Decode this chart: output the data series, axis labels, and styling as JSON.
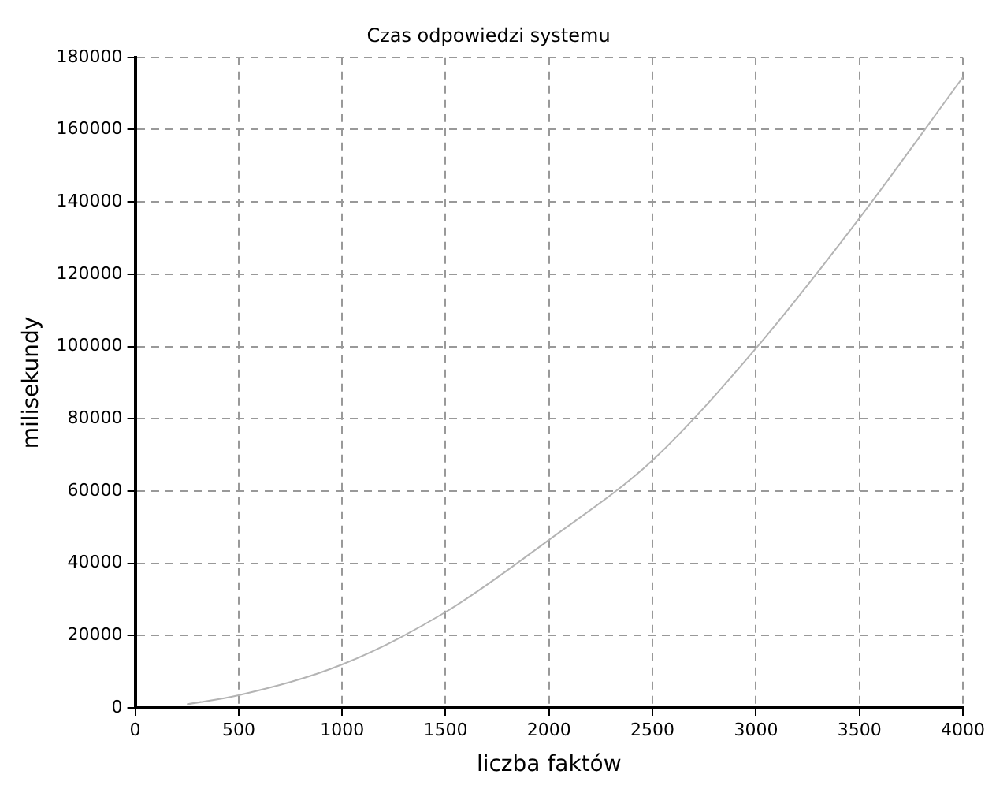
{
  "chart_data": {
    "type": "line",
    "title": "Czas odpowiedzi systemu",
    "xlabel": "liczba faktów",
    "ylabel": "milisekundy",
    "x": [
      250,
      500,
      1000,
      1500,
      2000,
      2500,
      3000,
      3500,
      4000
    ],
    "series": [
      {
        "color": "#b4b4b4",
        "values": [
          1000,
          3500,
          12000,
          26500,
          46500,
          68500,
          99500,
          135500,
          174500
        ]
      }
    ],
    "xlim": [
      0,
      4000
    ],
    "xticks": [
      0,
      500,
      1000,
      1500,
      2000,
      2500,
      3000,
      3500,
      4000
    ],
    "ylim": [
      0,
      180000
    ],
    "yticks": [
      0,
      20000,
      40000,
      60000,
      80000,
      100000,
      120000,
      140000,
      160000,
      180000
    ],
    "grid": true,
    "legend": false,
    "marker": "none",
    "line_style": "solid"
  }
}
